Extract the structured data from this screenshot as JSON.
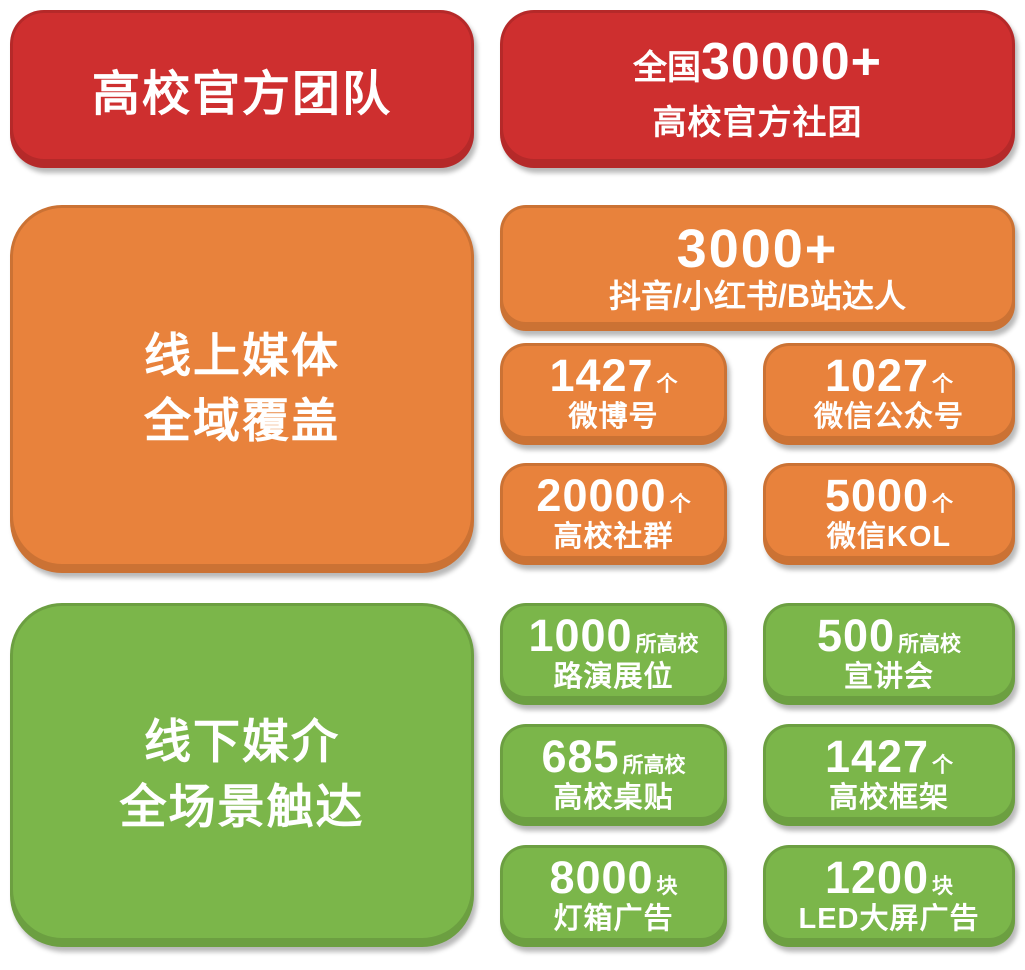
{
  "palette": {
    "red": "#ce2f2f",
    "orange": "#e8823c",
    "green": "#7bb64a",
    "text": "#ffffff"
  },
  "sections": {
    "team": {
      "title": "高校官方团队",
      "stat": {
        "prefix": "全国",
        "number": "30000+",
        "line2": "高校官方社团"
      }
    },
    "online": {
      "title_line1": "线上媒体",
      "title_line2": "全域覆盖",
      "hero": {
        "number": "3000+",
        "label": "抖音/小红书/B站达人"
      },
      "cards": [
        {
          "number": "1427",
          "unit": "个",
          "label": "微博号"
        },
        {
          "number": "1027",
          "unit": "个",
          "label": "微信公众号"
        },
        {
          "number": "20000",
          "unit": "个",
          "label": "高校社群"
        },
        {
          "number": "5000",
          "unit": "个",
          "label": "微信KOL"
        }
      ]
    },
    "offline": {
      "title_line1": "线下媒介",
      "title_line2": "全场景触达",
      "cards": [
        {
          "number": "1000",
          "unit": "所高校",
          "label": "路演展位"
        },
        {
          "number": "500",
          "unit": "所高校",
          "label": "宣讲会"
        },
        {
          "number": "685",
          "unit": "所高校",
          "label": "高校桌贴"
        },
        {
          "number": "1427",
          "unit": "个",
          "label": "高校框架"
        },
        {
          "number": "8000",
          "unit": "块",
          "label": "灯箱广告"
        },
        {
          "number": "1200",
          "unit": "块",
          "label": "LED大屏广告"
        }
      ]
    }
  }
}
